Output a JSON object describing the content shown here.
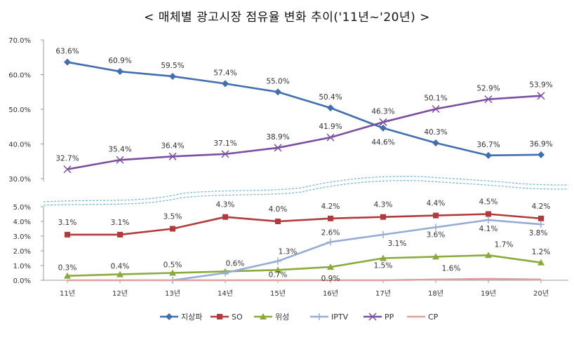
{
  "title": "< 매체별 광고시장 점유율 변화 추이('11년~'20년) >",
  "chart_data": {
    "type": "line",
    "title": "< 매체별 광고시장 점유율 변화 추이('11년~'20년) >",
    "categories": [
      "11년",
      "12년",
      "13년",
      "14년",
      "15년",
      "16년",
      "17년",
      "18년",
      "19년",
      "20년"
    ],
    "axis_break": {
      "lower_range": [
        0,
        5
      ],
      "upper_range": [
        30,
        70
      ]
    },
    "y_ticks_lower": [
      "0.0%",
      "1.0%",
      "2.0%",
      "3.0%",
      "4.0%",
      "5.0%"
    ],
    "y_ticks_upper": [
      "30.0%",
      "40.0%",
      "50.0%",
      "60.0%",
      "70.0%"
    ],
    "legend_position": "bottom",
    "series": [
      {
        "name": "지상파",
        "color": "#3f6fb0",
        "marker": "diamond",
        "values": [
          63.6,
          60.9,
          59.5,
          57.4,
          55.0,
          50.4,
          44.6,
          40.3,
          36.7,
          36.9
        ],
        "labels": [
          "63.6%",
          "60.9%",
          "59.5%",
          "57.4%",
          "55.0%",
          "50.4%",
          "44.6%",
          "40.3%",
          "36.7%",
          "36.9%"
        ]
      },
      {
        "name": "SO",
        "color": "#b23a3a",
        "marker": "square",
        "values": [
          3.1,
          3.1,
          3.5,
          4.3,
          4.0,
          4.2,
          4.3,
          4.4,
          4.5,
          4.2
        ],
        "labels": [
          "3.1%",
          "3.1%",
          "3.5%",
          "4.3%",
          "4.0%",
          "4.2%",
          "4.3%",
          "4.4%",
          "4.5%",
          "4.2%"
        ]
      },
      {
        "name": "위성",
        "color": "#8aaa3c",
        "marker": "triangle",
        "values": [
          0.3,
          0.4,
          0.5,
          0.6,
          0.7,
          0.9,
          1.5,
          1.6,
          1.7,
          1.2
        ],
        "labels": [
          "0.3%",
          "0.4%",
          "0.5%",
          "0.6%",
          "0.7%",
          "0.9%",
          "1.5%",
          "1.6%",
          "1.7%",
          "1.2%"
        ]
      },
      {
        "name": "IPTV",
        "color": "#94acd6",
        "marker": "plus",
        "values": [
          null,
          null,
          0.0,
          0.5,
          1.3,
          2.6,
          3.1,
          3.6,
          4.1,
          3.8
        ],
        "labels": [
          null,
          null,
          null,
          null,
          "1.3%",
          "2.6%",
          "3.1%",
          "3.6%",
          "4.1%",
          "3.8%"
        ]
      },
      {
        "name": "PP",
        "color": "#7a4ea0",
        "marker": "x",
        "values": [
          32.7,
          35.4,
          36.4,
          37.1,
          38.9,
          41.9,
          46.3,
          50.1,
          52.9,
          53.9
        ],
        "labels": [
          "32.7%",
          "35.4%",
          "36.4%",
          "37.1%",
          "38.9%",
          "41.9%",
          "46.3%",
          "50.1%",
          "52.9%",
          "53.9%"
        ]
      },
      {
        "name": "CP",
        "color": "#e0a0a0",
        "marker": "none",
        "values": [
          0.0,
          0.0,
          0.0,
          0.0,
          0.0,
          0.0,
          0.0,
          0.05,
          0.1,
          0.05
        ],
        "labels": []
      }
    ]
  }
}
